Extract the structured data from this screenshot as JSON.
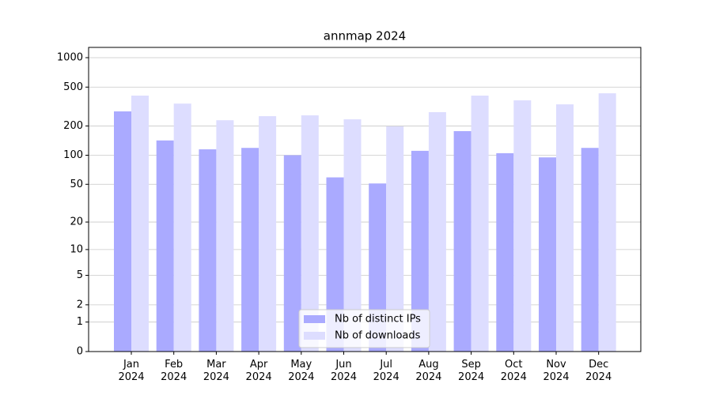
{
  "chart_data": {
    "type": "bar",
    "title": "annmap 2024",
    "categories": [
      "Jan\n2024",
      "Feb\n2024",
      "Mar\n2024",
      "Apr\n2024",
      "May\n2024",
      "Jun\n2024",
      "Jul\n2024",
      "Aug\n2024",
      "Sep\n2024",
      "Oct\n2024",
      "Nov\n2024",
      "Dec\n2024"
    ],
    "series": [
      {
        "name": "Nb of distinct IPs",
        "color": "#aaaaff",
        "values": [
          282,
          142,
          115,
          119,
          100,
          59,
          51,
          111,
          177,
          105,
          95,
          119
        ]
      },
      {
        "name": "Nb of downloads",
        "color": "#ddddff",
        "values": [
          409,
          339,
          229,
          252,
          257,
          234,
          198,
          277,
          409,
          366,
          333,
          432
        ]
      }
    ],
    "y_scale": "log1p",
    "ylim": [
      0,
      1273
    ],
    "yticks": [
      0,
      1,
      2,
      5,
      10,
      20,
      50,
      100,
      200,
      500,
      1000
    ],
    "grid": true,
    "legend_position": "lower center"
  }
}
